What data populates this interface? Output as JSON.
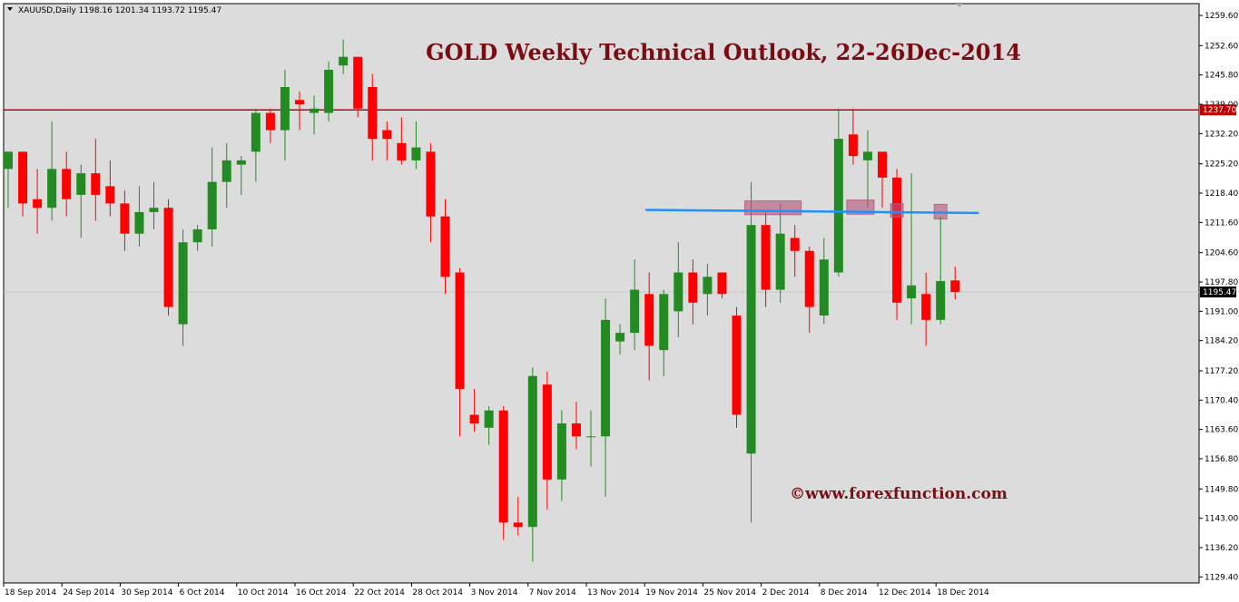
{
  "header": {
    "symbol_line": "XAUUSD,Daily  1198.16 1201.34 1193.72 1195.47",
    "menu_icon": "triangle-down-icon"
  },
  "chart_data": {
    "type": "candlestick",
    "title": "GOLD Weekly Technical Outlook, 22-26Dec-2014",
    "watermark": "©www.forexfunction.com",
    "symbol": "XAUUSD",
    "timeframe": "Daily",
    "ohlc_readout": {
      "open": 1198.16,
      "high": 1201.34,
      "low": 1193.72,
      "close": 1195.47
    },
    "ylim": [
      1128.0,
      1261.5
    ],
    "y_ticks": [
      1259.6,
      1252.6,
      1245.8,
      1239.0,
      1232.2,
      1225.2,
      1218.4,
      1211.6,
      1204.6,
      1197.8,
      1191.0,
      1184.2,
      1177.2,
      1170.4,
      1163.6,
      1156.8,
      1149.8,
      1143.0,
      1136.2,
      1129.4
    ],
    "y_tick_labels": [
      "1259.60",
      "1252.60",
      "1245.80",
      "1239.00",
      "1232.20",
      "1225.20",
      "1218.40",
      "1211.60",
      "1204.60",
      "1197.80",
      "1191.00",
      "1184.20",
      "1177.20",
      "1170.40",
      "1163.60",
      "1156.80",
      "1149.80",
      "1143.00",
      "1136.20",
      "1129.40"
    ],
    "x_labels": [
      {
        "index": 0,
        "label": "18 Sep 2014"
      },
      {
        "index": 4,
        "label": "24 Sep 2014"
      },
      {
        "index": 8,
        "label": "30 Sep 2014"
      },
      {
        "index": 12,
        "label": "6 Oct 2014"
      },
      {
        "index": 16,
        "label": "10 Oct 2014"
      },
      {
        "index": 20,
        "label": "16 Oct 2014"
      },
      {
        "index": 24,
        "label": "22 Oct 2014"
      },
      {
        "index": 28,
        "label": "28 Oct 2014"
      },
      {
        "index": 32,
        "label": "3 Nov 2014"
      },
      {
        "index": 36,
        "label": "7 Nov 2014"
      },
      {
        "index": 40,
        "label": "13 Nov 2014"
      },
      {
        "index": 44,
        "label": "19 Nov 2014"
      },
      {
        "index": 48,
        "label": "25 Nov 2014"
      },
      {
        "index": 52,
        "label": "2 Dec 2014"
      },
      {
        "index": 56,
        "label": "8 Dec 2014"
      },
      {
        "index": 60,
        "label": "12 Dec 2014"
      },
      {
        "index": 64,
        "label": "18 Dec 2014"
      }
    ],
    "candles": [
      [
        1224.0,
        1228.0,
        1215.0,
        1228.0
      ],
      [
        1228.0,
        1228.0,
        1213.0,
        1216.0
      ],
      [
        1217.0,
        1224.0,
        1209.0,
        1215.0
      ],
      [
        1215.0,
        1235.0,
        1212.0,
        1224.0
      ],
      [
        1224.0,
        1228.0,
        1213.0,
        1217.0
      ],
      [
        1218.0,
        1225.0,
        1208.0,
        1223.0
      ],
      [
        1223.0,
        1231.0,
        1212.0,
        1218.0
      ],
      [
        1220.0,
        1226.0,
        1213.0,
        1216.0
      ],
      [
        1216.0,
        1219.0,
        1205.0,
        1209.0
      ],
      [
        1209.0,
        1220.0,
        1206.0,
        1214.0
      ],
      [
        1214.0,
        1221.0,
        1210.0,
        1215.0
      ],
      [
        1215.0,
        1217.0,
        1190.0,
        1192.0
      ],
      [
        1188.0,
        1210.0,
        1183.0,
        1207.0
      ],
      [
        1207.0,
        1211.0,
        1205.0,
        1210.0
      ],
      [
        1210.0,
        1229.0,
        1206.0,
        1221.0
      ],
      [
        1221.0,
        1230.0,
        1215.0,
        1226.0
      ],
      [
        1225.0,
        1227.0,
        1218.0,
        1226.0
      ],
      [
        1228.0,
        1238.0,
        1221.0,
        1237.0
      ],
      [
        1237.0,
        1238.0,
        1230.0,
        1233.0
      ],
      [
        1233.0,
        1247.0,
        1226.0,
        1243.0
      ],
      [
        1240.0,
        1242.0,
        1233.0,
        1239.0
      ],
      [
        1237.0,
        1241.0,
        1232.0,
        1238.0
      ],
      [
        1237.0,
        1249.0,
        1235.0,
        1247.0
      ],
      [
        1248.0,
        1254.0,
        1246.0,
        1250.0
      ],
      [
        1250.0,
        1250.0,
        1236.0,
        1238.0
      ],
      [
        1243.0,
        1246.0,
        1226.0,
        1231.0
      ],
      [
        1233.0,
        1235.0,
        1226.0,
        1231.0
      ],
      [
        1230.0,
        1236.0,
        1225.0,
        1226.0
      ],
      [
        1226.0,
        1235.0,
        1224.0,
        1229.0
      ],
      [
        1228.0,
        1230.0,
        1207.0,
        1213.0
      ],
      [
        1213.0,
        1217.0,
        1195.0,
        1199.0
      ],
      [
        1200.0,
        1201.0,
        1162.0,
        1173.0
      ],
      [
        1167.0,
        1173.0,
        1163.0,
        1165.0
      ],
      [
        1164.0,
        1169.0,
        1160.0,
        1168.0
      ],
      [
        1168.0,
        1169.0,
        1138.0,
        1142.0
      ],
      [
        1142.0,
        1148.0,
        1139.0,
        1141.0
      ],
      [
        1141.0,
        1178.0,
        1133.0,
        1176.0
      ],
      [
        1174.0,
        1177.0,
        1145.0,
        1152.0
      ],
      [
        1152.0,
        1168.0,
        1147.0,
        1165.0
      ],
      [
        1165.0,
        1170.0,
        1159.0,
        1162.0
      ],
      [
        1162.0,
        1168.0,
        1155.0,
        1162.0
      ],
      [
        1162.0,
        1194.0,
        1148.0,
        1189.0
      ],
      [
        1184.0,
        1188.0,
        1181.0,
        1186.0
      ],
      [
        1186.0,
        1203.0,
        1182.0,
        1196.0
      ],
      [
        1195.0,
        1200.0,
        1175.0,
        1183.0
      ],
      [
        1182.0,
        1196.0,
        1176.0,
        1195.0
      ],
      [
        1191.0,
        1207.0,
        1185.0,
        1200.0
      ],
      [
        1200.0,
        1203.0,
        1188.0,
        1193.0
      ],
      [
        1195.0,
        1202.0,
        1190.0,
        1199.0
      ],
      [
        1200.0,
        1200.0,
        1194.0,
        1195.0
      ],
      [
        1190.0,
        1192.0,
        1164.0,
        1167.0
      ],
      [
        1158.0,
        1221.0,
        1142.0,
        1211.0
      ],
      [
        1211.0,
        1214.0,
        1192.0,
        1196.0
      ],
      [
        1196.0,
        1216.0,
        1193.0,
        1209.0
      ],
      [
        1208.0,
        1211.0,
        1199.0,
        1205.0
      ],
      [
        1205.0,
        1206.0,
        1186.0,
        1192.0
      ],
      [
        1190.0,
        1208.0,
        1188.0,
        1203.0
      ],
      [
        1200.0,
        1238.0,
        1199.0,
        1231.0
      ],
      [
        1232.0,
        1238.0,
        1225.0,
        1227.0
      ],
      [
        1226.0,
        1233.0,
        1215.0,
        1228.0
      ],
      [
        1228.0,
        1228.0,
        1215.0,
        1222.0
      ],
      [
        1222.0,
        1224.0,
        1189.0,
        1193.0
      ],
      [
        1194.0,
        1223.0,
        1188.0,
        1197.0
      ],
      [
        1195.0,
        1200.0,
        1183.0,
        1189.0
      ],
      [
        1189.0,
        1213.0,
        1188.0,
        1198.0
      ],
      [
        1198.16,
        1201.34,
        1193.72,
        1195.47
      ]
    ],
    "horizontal_lines": [
      {
        "value": 1237.7,
        "label": "1237.70",
        "color": "#c00000"
      },
      {
        "value": 1195.47,
        "label": "1195.47",
        "color": "#c8c8c8"
      }
    ],
    "trendline": {
      "from_index": 44,
      "from_value": 1214.5,
      "to_index": 66,
      "to_value": 1213.8,
      "color": "#1e90ff"
    },
    "highlight_zones": [
      {
        "from_index": 51,
        "to_index": 54,
        "low": 1213.4,
        "high": 1216.6
      },
      {
        "from_index": 58,
        "to_index": 59,
        "low": 1213.5,
        "high": 1216.8
      },
      {
        "from_index": 61,
        "to_index": 61,
        "low": 1212.8,
        "high": 1216.0
      },
      {
        "from_index": 64,
        "to_index": 64,
        "low": 1212.4,
        "high": 1215.8
      }
    ],
    "grid": false,
    "legend": "none"
  },
  "colors": {
    "background": "#ffffff",
    "plot_background": "#dcdcdc",
    "bull": "#228b22",
    "bear": "#ff0000",
    "highlight": "#b3527a",
    "title": "#7a0c14",
    "price_tag": "#000000"
  }
}
